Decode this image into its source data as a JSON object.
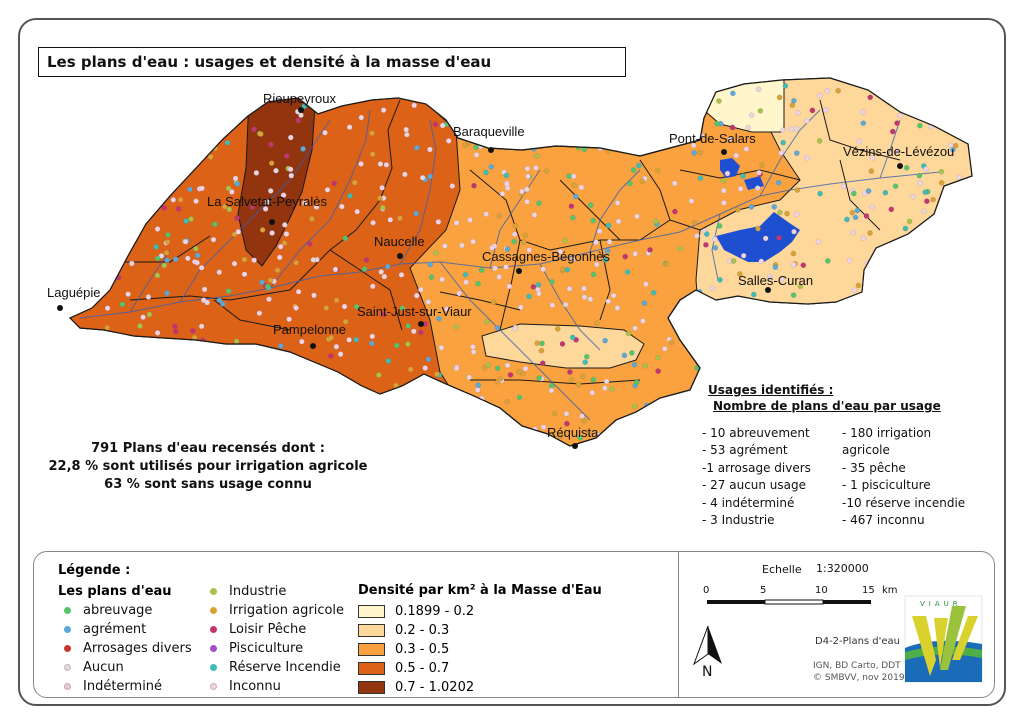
{
  "title": "Les plans d'eau : usages et densité à la masse d'eau",
  "towns": [
    {
      "name": "Rieupeyroux"
    },
    {
      "name": "Baraqueville"
    },
    {
      "name": "Pont-de-Salars"
    },
    {
      "name": "Vézins-de-Lévézou"
    },
    {
      "name": "La Salvetat-Peyralès"
    },
    {
      "name": "Naucelle"
    },
    {
      "name": "Cassagnes-Bégonhès"
    },
    {
      "name": "Salles-Curan"
    },
    {
      "name": "Laguépie"
    },
    {
      "name": "Saint-Just-sur-Viaur"
    },
    {
      "name": "Pampelonne"
    },
    {
      "name": "Réquista"
    }
  ],
  "stats": {
    "line1": "791 Plans d'eau recensés dont :",
    "line2": "22,8 % sont utilisés pour irrigation agricole",
    "line3": "63 % sont sans usage connu"
  },
  "usages": {
    "heading1": "Usages identifiés :",
    "heading2": "Nombre de plans d'eau par usage",
    "left": [
      "- 10 abreuvement",
      "- 53 agrément",
      "-1 arrosage divers",
      "- 27 aucun usage",
      "- 4 indéterminé",
      "- 3 Industrie"
    ],
    "right": [
      "- 180 irrigation agricole",
      "- 35 pêche",
      "- 1 pisciculture",
      "-10 réserve incendie",
      "- 467 inconnu"
    ]
  },
  "legend": {
    "title": "Légende :",
    "ponds_title": "Les plans d'eau",
    "col1": [
      {
        "label": "abreuvage",
        "color": "#55c46a"
      },
      {
        "label": "agrément",
        "color": "#5aa9d6"
      },
      {
        "label": "Arrosages divers",
        "color": "#c8372d"
      },
      {
        "label": "Aucun",
        "color": "#e6d6de"
      },
      {
        "label": "Indéterminé",
        "color": "#e8c9d8"
      }
    ],
    "col2": [
      {
        "label": "Industrie",
        "color": "#a8c24a"
      },
      {
        "label": "Irrigation agricole",
        "color": "#d8a236"
      },
      {
        "label": "Loisir Pêche",
        "color": "#c0366f"
      },
      {
        "label": "Pisciculture",
        "color": "#a24fc8"
      },
      {
        "label": "Réserve Incendie",
        "color": "#3dbdb3"
      },
      {
        "label": "Inconnu",
        "color": "#eed3e3"
      }
    ],
    "density_title": "Densité par km² à la Masse d'Eau",
    "density": [
      {
        "label": "0.1899 - 0.2",
        "color": "#fff6cc"
      },
      {
        "label": "0.2 - 0.3",
        "color": "#fed89a"
      },
      {
        "label": "0.3 - 0.5",
        "color": "#f9a23f"
      },
      {
        "label": "0.5 - 0.7",
        "color": "#dc6218"
      },
      {
        "label": "0.7 - 1.0202",
        "color": "#92340e"
      }
    ]
  },
  "scale": {
    "label": "Echelle",
    "ratio": "1:320000",
    "ticks": [
      "0",
      "5",
      "10",
      "15"
    ],
    "unit": "km"
  },
  "north": "N",
  "map_ref": "D4-2-Plans d'eau",
  "credits": [
    "IGN, BD Carto, DDT",
    "© SMBVV, nov 2019"
  ],
  "logo_text": "VIAUR",
  "colors": {
    "lake": "#1f4fd1",
    "river": "#3a5fae",
    "border": "#1a1a1a"
  }
}
